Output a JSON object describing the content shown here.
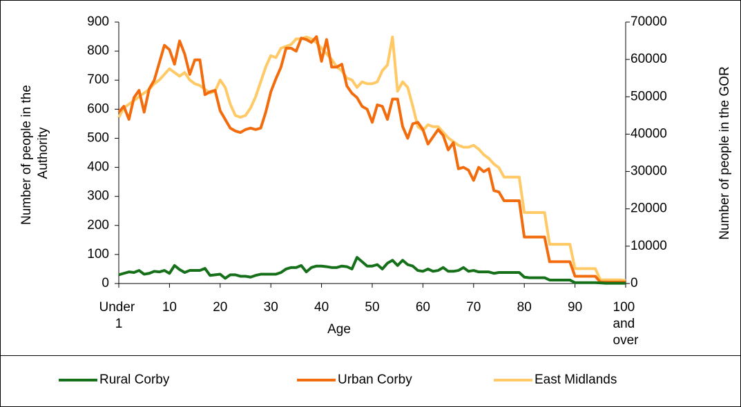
{
  "chart_data": {
    "type": "line",
    "x_label": "Age",
    "y_label": "Number of people in the Authority",
    "y2_label": "Number of people in the GOR",
    "categories": [
      "Under 1",
      null,
      null,
      null,
      null,
      null,
      null,
      null,
      null,
      null,
      "10",
      null,
      null,
      null,
      null,
      null,
      null,
      null,
      null,
      null,
      "20",
      null,
      null,
      null,
      null,
      null,
      null,
      null,
      null,
      null,
      "30",
      null,
      null,
      null,
      null,
      null,
      null,
      null,
      null,
      null,
      "40",
      null,
      null,
      null,
      null,
      null,
      null,
      null,
      null,
      null,
      "50",
      null,
      null,
      null,
      null,
      null,
      null,
      null,
      null,
      null,
      "60",
      null,
      null,
      null,
      null,
      null,
      null,
      null,
      null,
      null,
      "70",
      null,
      null,
      null,
      null,
      null,
      null,
      null,
      null,
      null,
      "80",
      null,
      null,
      null,
      null,
      null,
      null,
      null,
      null,
      null,
      "90",
      null,
      null,
      null,
      null,
      null,
      null,
      null,
      null,
      null,
      "100 and over"
    ],
    "ylim": [
      0,
      900
    ],
    "yticks": [
      0,
      100,
      200,
      300,
      400,
      500,
      600,
      700,
      800,
      900
    ],
    "y2lim": [
      0,
      70000
    ],
    "y2ticks": [
      0,
      10000,
      20000,
      30000,
      40000,
      50000,
      60000,
      70000
    ],
    "legend": "bottom",
    "series": [
      {
        "name": "Rural Corby",
        "color": "#16701a",
        "values": [
          30,
          35,
          40,
          38,
          45,
          32,
          35,
          42,
          40,
          45,
          35,
          62,
          48,
          38,
          45,
          45,
          45,
          52,
          28,
          30,
          32,
          18,
          30,
          30,
          25,
          25,
          22,
          28,
          32,
          32,
          32,
          32,
          38,
          50,
          55,
          55,
          62,
          40,
          55,
          60,
          60,
          58,
          55,
          55,
          60,
          58,
          50,
          90,
          75,
          60,
          60,
          65,
          50,
          70,
          80,
          62,
          80,
          65,
          60,
          45,
          42,
          50,
          42,
          45,
          55,
          42,
          42,
          45,
          55,
          42,
          45,
          40,
          40,
          40,
          35,
          38,
          38,
          38,
          38,
          38,
          22,
          20,
          20,
          20,
          20,
          12,
          12,
          12,
          12,
          12,
          3,
          3,
          3,
          3,
          3,
          2,
          1,
          1,
          1,
          1,
          1
        ]
      },
      {
        "name": "Urban Corby",
        "color": "#f26c0d",
        "values": [
          590,
          610,
          565,
          640,
          665,
          590,
          670,
          700,
          760,
          820,
          805,
          755,
          835,
          790,
          720,
          770,
          770,
          650,
          660,
          665,
          595,
          565,
          535,
          525,
          520,
          530,
          535,
          530,
          535,
          590,
          660,
          705,
          745,
          810,
          810,
          800,
          845,
          840,
          830,
          850,
          765,
          840,
          745,
          745,
          755,
          680,
          655,
          640,
          610,
          600,
          555,
          615,
          610,
          565,
          635,
          635,
          540,
          500,
          550,
          555,
          530,
          480,
          505,
          530,
          510,
          460,
          485,
          395,
          400,
          390,
          355,
          400,
          385,
          395,
          320,
          315,
          285,
          285,
          285,
          285,
          160,
          160,
          160,
          160,
          160,
          75,
          75,
          75,
          75,
          75,
          25,
          25,
          25,
          25,
          25,
          5,
          5,
          5,
          5,
          5,
          5
        ]
      },
      {
        "name": "East Midlands",
        "color": "#ffc966",
        "axis": "y2",
        "values": [
          44500,
          47000,
          48000,
          49000,
          50000,
          51000,
          52000,
          53500,
          54500,
          56000,
          57500,
          56500,
          55500,
          56500,
          54500,
          53500,
          53000,
          52000,
          51000,
          51500,
          54500,
          52500,
          48000,
          45000,
          44500,
          45000,
          47000,
          50000,
          54000,
          58000,
          61000,
          60500,
          63000,
          63500,
          64000,
          65500,
          65500,
          66000,
          65500,
          64500,
          63000,
          61500,
          60000,
          58000,
          57000,
          55000,
          54500,
          52500,
          54000,
          53500,
          53500,
          54000,
          57000,
          58500,
          66000,
          51500,
          54000,
          52500,
          47500,
          42000,
          41000,
          42500,
          42000,
          42000,
          40500,
          39000,
          38000,
          37000,
          36500,
          36500,
          37000,
          36000,
          34500,
          33500,
          32000,
          31000,
          28500,
          28500,
          28500,
          28500,
          19000,
          19000,
          19000,
          19000,
          19000,
          10500,
          10500,
          10500,
          10500,
          10500,
          4000,
          4000,
          4000,
          4000,
          4000,
          1000,
          1000,
          1000,
          1000,
          1000,
          800
        ]
      }
    ]
  }
}
